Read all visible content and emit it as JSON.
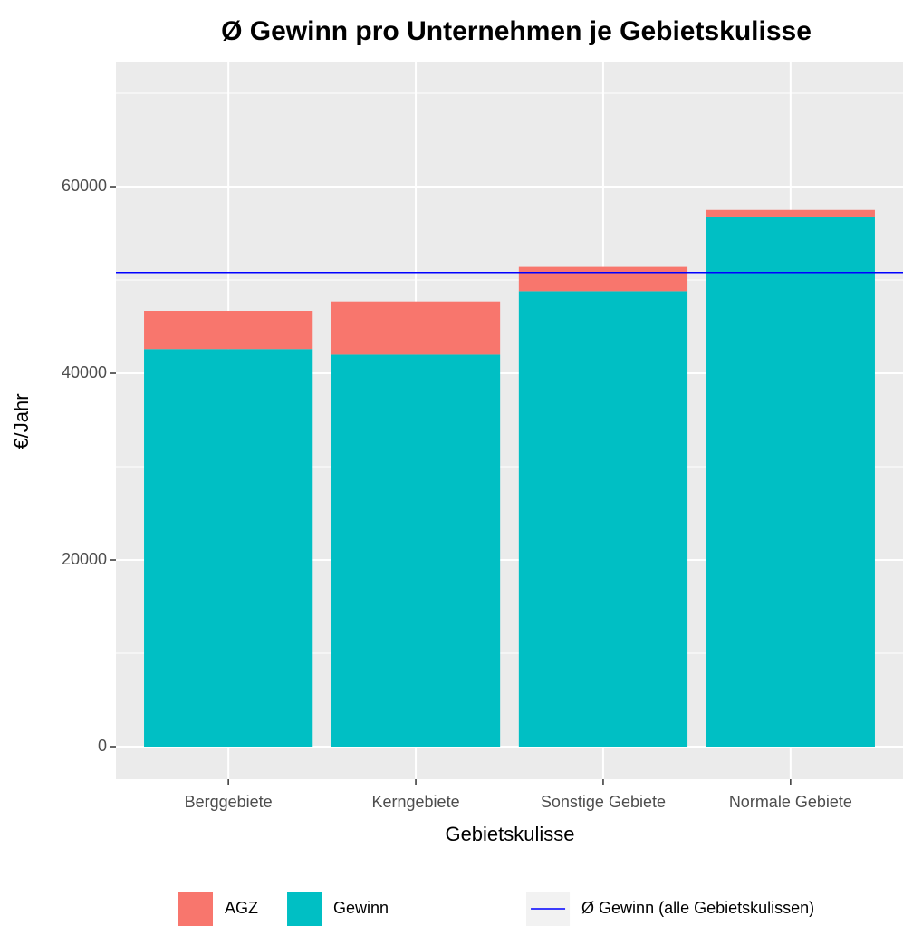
{
  "chart_data": {
    "type": "bar",
    "stacked": true,
    "title": "Ø Gewinn pro Unternehmen je Gebietskulisse",
    "x_label": "Gebietskulisse",
    "y_label": "€/Jahr",
    "categories": [
      "Berggebiete",
      "Kerngebiete",
      "Sonstige Gebiete",
      "Normale Gebiete"
    ],
    "series": [
      {
        "name": "AGZ",
        "color": "#F8766D",
        "values": [
          4100,
          5700,
          2600,
          700
        ]
      },
      {
        "name": "Gewinn",
        "color": "#00BFC4",
        "values": [
          42600,
          42000,
          48800,
          56800
        ]
      }
    ],
    "hline": {
      "name": "Ø Gewinn (alle Gebietskulissen)",
      "value": 50800,
      "color": "#0000FF"
    },
    "ylim": [
      -3495,
      73400
    ],
    "yticks": [
      0,
      20000,
      40000,
      60000
    ],
    "minor_yticks": [
      10000,
      30000,
      50000,
      70000
    ],
    "grid": true,
    "legend": "bottom"
  }
}
